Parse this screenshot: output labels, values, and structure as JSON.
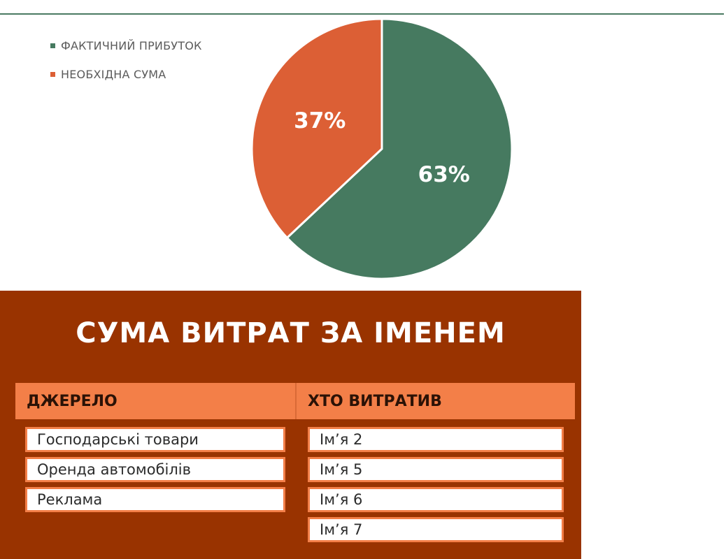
{
  "chart_data": {
    "type": "pie",
    "series": [
      {
        "name": "ФАКТИЧНИЙ ПРИБУТОК",
        "value": 63,
        "label": "63%",
        "color": "#467a60"
      },
      {
        "name": "НЕОБХІДНА СУМА",
        "value": 37,
        "label": "37%",
        "color": "#dc5f35"
      }
    ],
    "legend_position": "top-left"
  },
  "expenses": {
    "title": "СУМА ВИТРАТ ЗА ІМЕНЕМ",
    "headers": {
      "source": "ДЖЕРЕЛО",
      "who": "ХТО ВИТРАТИВ"
    },
    "sources": [
      "Господарські товари",
      "Оренда автомобілів",
      "Реклама"
    ],
    "who": [
      "Ім’я 2",
      "Ім’я 5",
      "Ім’я 6",
      "Ім’я 7"
    ]
  },
  "colors": {
    "panel_bg": "#993300",
    "header_bg": "#f37f48",
    "accent_green": "#467a60",
    "accent_orange": "#dc5f35"
  }
}
